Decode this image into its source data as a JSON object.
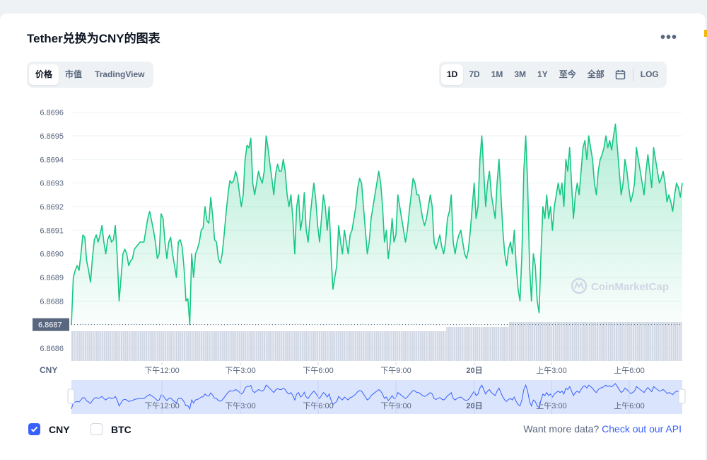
{
  "title": "Tether兑换为CNY的图表",
  "more_icon": "more-icon",
  "tabs_left": [
    "价格",
    "市值",
    "TradingView"
  ],
  "tabs_left_active": 0,
  "tabs_right": [
    "1D",
    "7D",
    "1M",
    "3M",
    "1Y",
    "至今",
    "全部"
  ],
  "tabs_right_active": 0,
  "calendar_icon": "calendar-icon",
  "log_label": "LOG",
  "watermark": "CoinMarketCap",
  "currency_label": "CNY",
  "legend": [
    {
      "label": "CNY",
      "checked": true
    },
    {
      "label": "BTC",
      "checked": false
    }
  ],
  "footer": {
    "prefix": "Want more data?",
    "link": "Check out our API"
  },
  "colors": {
    "line": "#16c784",
    "accent": "#3861fb",
    "volume": "#cfd6e4",
    "navigator": "#dbe4fd"
  },
  "chart_data": {
    "type": "area",
    "y_ticks": [
      "6.8686",
      "6.8687",
      "6.8688",
      "6.8689",
      "6.8690",
      "6.8691",
      "6.8692",
      "6.8693",
      "6.8694",
      "6.8695",
      "6.8696"
    ],
    "ylim": [
      6.86854,
      6.86965
    ],
    "x_ticks": [
      "下午12:00",
      "下午3:00",
      "下午6:00",
      "下午9:00",
      "20日",
      "上午3:00",
      "上午6:00"
    ],
    "current_price_label": "6.8687",
    "grid": true,
    "series": [
      {
        "values": [
          6.8687,
          6.8689,
          6.86893,
          6.86895,
          6.86893,
          6.869,
          6.86908,
          6.86907,
          6.86897,
          6.86893,
          6.86888,
          6.86898,
          6.86906,
          6.86908,
          6.86905,
          6.86908,
          6.86912,
          6.86905,
          6.869,
          6.86906,
          6.86908,
          6.86905,
          6.86906,
          6.86912,
          6.86899,
          6.8688,
          6.8689,
          6.869,
          6.86902,
          6.869,
          6.86895,
          6.86897,
          6.86898,
          6.86902,
          6.86903,
          6.86904,
          6.86905,
          6.86905,
          6.86905,
          6.8691,
          6.86915,
          6.86918,
          6.86914,
          6.8691,
          6.86905,
          6.86898,
          6.869,
          6.86917,
          6.86915,
          6.86905,
          6.86898,
          6.86905,
          6.86907,
          6.869,
          6.86895,
          6.8689,
          6.86905,
          6.86906,
          6.86903,
          6.86894,
          6.8688,
          6.86881,
          6.8687,
          6.869,
          6.8689,
          6.869,
          6.86902,
          6.86905,
          6.8691,
          6.86911,
          6.8692,
          6.86914,
          6.86913,
          6.86924,
          6.86916,
          6.86906,
          6.86905,
          6.86898,
          6.86896,
          6.869,
          6.86908,
          6.86917,
          6.86925,
          6.86931,
          6.8693,
          6.86931,
          6.86935,
          6.86932,
          6.86926,
          6.8692,
          6.86925,
          6.8694,
          6.86946,
          6.86945,
          6.86949,
          6.8693,
          6.86925,
          6.8693,
          6.86935,
          6.86932,
          6.8693,
          6.86935,
          6.8695,
          6.86945,
          6.86938,
          6.86932,
          6.86925,
          6.86934,
          6.86938,
          6.86935,
          6.86935,
          6.8694,
          6.86935,
          6.86925,
          6.8692,
          6.86925,
          6.86915,
          6.869,
          6.8692,
          6.86925,
          6.8691,
          6.86915,
          6.86926,
          6.8691,
          6.86905,
          6.86915,
          6.86923,
          6.8693,
          6.86923,
          6.86912,
          6.86905,
          6.86915,
          6.86925,
          6.8692,
          6.8691,
          6.8692,
          6.869,
          6.86885,
          6.8689,
          6.86895,
          6.86912,
          6.86905,
          6.869,
          6.8691,
          6.86905,
          6.869,
          6.86908,
          6.8691,
          6.86915,
          6.8692,
          6.86928,
          6.86932,
          6.8693,
          6.8692,
          6.8691,
          6.869,
          6.86905,
          6.86915,
          6.8692,
          6.86925,
          6.8693,
          6.86935,
          6.8693,
          6.8692,
          6.86905,
          6.8691,
          6.86898,
          6.86905,
          6.86915,
          6.86905,
          6.86908,
          6.86925,
          6.8692,
          6.86915,
          6.8691,
          6.86905,
          6.8691,
          6.86918,
          6.86925,
          6.86932,
          6.8693,
          6.86925,
          6.86925,
          6.8692,
          6.86915,
          6.86912,
          6.86915,
          6.8692,
          6.86925,
          6.8692,
          6.86905,
          6.86902,
          6.86905,
          6.86908,
          6.86903,
          6.869,
          6.86905,
          6.86915,
          6.86918,
          6.86925,
          6.86905,
          6.869,
          6.86905,
          6.86908,
          6.8691,
          6.86905,
          6.869,
          6.86898,
          6.86902,
          6.8691,
          6.8692,
          6.8693,
          6.86915,
          6.8692,
          6.8694,
          6.8695,
          6.86935,
          6.8692,
          6.8693,
          6.86935,
          6.86925,
          6.8692,
          6.86915,
          6.8693,
          6.8694,
          6.86925,
          6.8691,
          6.869,
          6.86895,
          6.86902,
          6.86905,
          6.869,
          6.8691,
          6.86895,
          6.86885,
          6.8688,
          6.869,
          6.86935,
          6.8695,
          6.8693,
          6.86895,
          6.8688,
          6.869,
          6.86895,
          6.8688,
          6.86875,
          6.869,
          6.8692,
          6.86915,
          6.86925,
          6.86915,
          6.8692,
          6.8691,
          6.8692,
          6.86925,
          6.8693,
          6.86925,
          6.8693,
          6.8692,
          6.8694,
          6.86935,
          6.86945,
          6.8693,
          6.86915,
          6.86925,
          6.8693,
          6.86925,
          6.86935,
          6.86945,
          6.86948,
          6.8694,
          6.8695,
          6.86945,
          6.8694,
          6.8693,
          6.86925,
          6.86935,
          6.8694,
          6.86942,
          6.86945,
          6.8695,
          6.86945,
          6.86948,
          6.86944,
          6.8695,
          6.86955,
          6.86945,
          6.86935,
          6.86925,
          6.8693,
          6.8694,
          6.86935,
          6.86928,
          6.86922,
          6.86925,
          6.8693,
          6.86945,
          6.8694,
          6.86935,
          6.8693,
          6.86925,
          6.86935,
          6.86942,
          6.86935,
          6.86928,
          6.86945,
          6.8694,
          6.86935,
          6.8693,
          6.86932,
          6.86935,
          6.8693,
          6.86922,
          6.86925,
          6.86922,
          6.86918,
          6.86925,
          6.8693,
          6.86928,
          6.86924,
          6.8693
        ]
      }
    ]
  }
}
